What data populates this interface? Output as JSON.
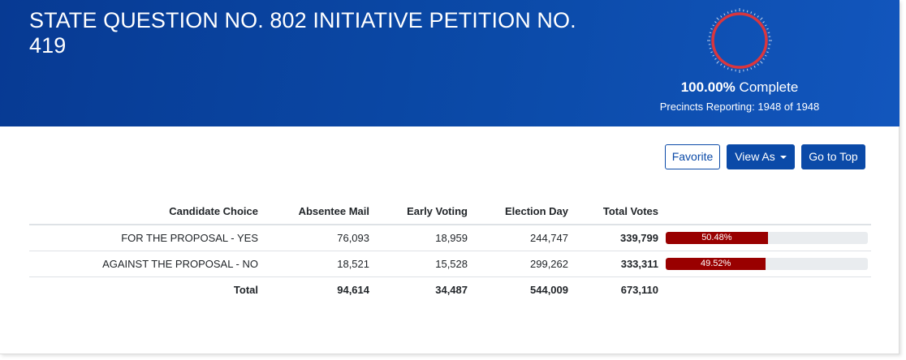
{
  "header": {
    "title": "STATE QUESTION NO. 802 INITIATIVE PETITION NO. 419",
    "complete_pct": "100.00%",
    "complete_label": "Complete",
    "precincts": "Precincts Reporting: 1948 of 1948",
    "reporting_fraction": 1.0,
    "gauge_color": "#d9363e"
  },
  "toolbar": {
    "favorite_label": "Favorite",
    "view_as_label": "View As",
    "go_to_top_label": "Go to Top"
  },
  "table": {
    "columns": [
      "Candidate Choice",
      "Absentee Mail",
      "Early Voting",
      "Election Day",
      "Total Votes"
    ],
    "rows": [
      {
        "choice": "FOR THE PROPOSAL - YES",
        "absentee": "76,093",
        "early": "18,959",
        "election_day": "244,747",
        "total": "339,799",
        "pct_label": "50.48%",
        "pct": 50.48
      },
      {
        "choice": "AGAINST THE PROPOSAL - NO",
        "absentee": "18,521",
        "early": "15,528",
        "election_day": "299,262",
        "total": "333,311",
        "pct_label": "49.52%",
        "pct": 49.52
      }
    ],
    "totals": {
      "label": "Total",
      "absentee": "94,614",
      "early": "34,487",
      "election_day": "544,009",
      "total": "673,110"
    },
    "bar_color": "#990000"
  }
}
